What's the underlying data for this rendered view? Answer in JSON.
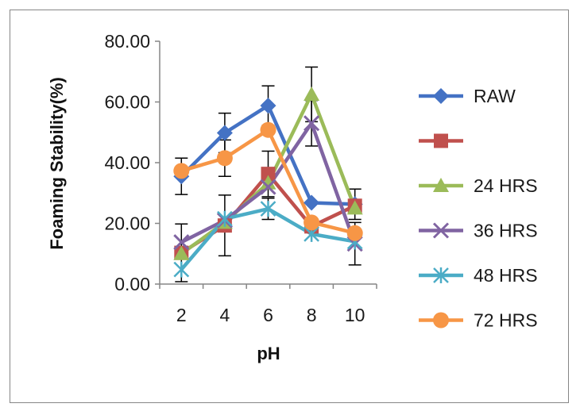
{
  "chart_data": {
    "type": "line",
    "title": "",
    "xlabel": "pH",
    "ylabel": "Foaming Stability(%)",
    "categories": [
      "2",
      "4",
      "6",
      "8",
      "10"
    ],
    "yticks": [
      "0.00",
      "20.00",
      "40.00",
      "60.00",
      "80.00"
    ],
    "ylim": [
      0,
      80
    ],
    "grid": false,
    "legend_position": "right",
    "series": [
      {
        "name": "RAW",
        "color": "#4472C4",
        "marker": "diamond",
        "values": [
          35.5,
          49.8,
          58.8,
          26.8,
          26.3
        ],
        "errors": [
          6,
          6.5,
          6.5,
          0,
          5
        ]
      },
      {
        "name": "",
        "color": "#C0504D",
        "marker": "square",
        "values": [
          10.3,
          19.3,
          36.3,
          19.0,
          25.8
        ],
        "errors": [
          9.5,
          10,
          7.5,
          0,
          0
        ]
      },
      {
        "name": "24 HRS",
        "color": "#9BBB59",
        "marker": "triangle",
        "values": [
          10.0,
          20.3,
          33.3,
          62.5,
          25.0
        ],
        "errors": [
          0,
          0,
          0,
          9,
          0
        ]
      },
      {
        "name": "36 HRS",
        "color": "#8064A2",
        "marker": "x",
        "values": [
          13.8,
          21.0,
          32.0,
          53.0,
          13.3
        ],
        "errors": [
          0,
          0,
          0,
          7.5,
          7
        ]
      },
      {
        "name": "48 HRS",
        "color": "#4BACC6",
        "marker": "star",
        "values": [
          4.8,
          21.5,
          24.8,
          16.5,
          14.0
        ],
        "errors": [
          0,
          0,
          3.5,
          0,
          0
        ]
      },
      {
        "name": "72 HRS",
        "color": "#F79646",
        "marker": "circle",
        "values": [
          37.3,
          41.5,
          50.8,
          20.3,
          16.8
        ],
        "errors": [
          0,
          6,
          0,
          0,
          0
        ]
      }
    ]
  }
}
